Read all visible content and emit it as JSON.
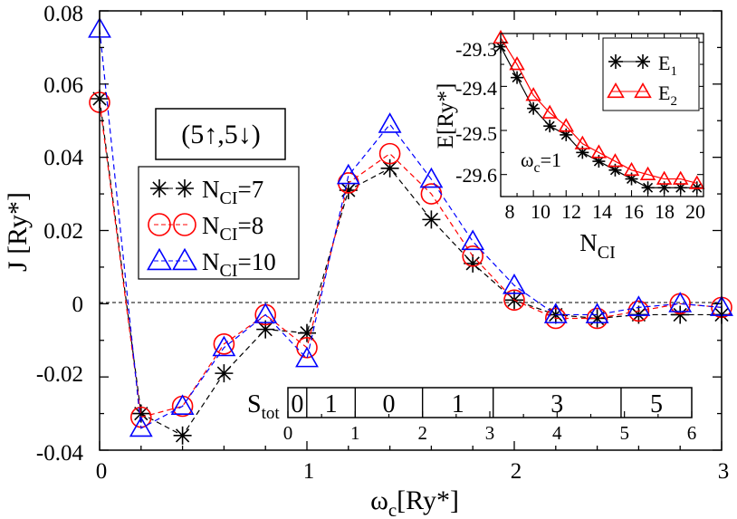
{
  "chart_data": [
    {
      "type": "line",
      "xlabel": "ωc[Ry*]",
      "ylabel": "J [Ry*]",
      "xlim": [
        0,
        3
      ],
      "ylim": [
        -0.04,
        0.08
      ],
      "x_ticks": [
        "0",
        "1",
        "2",
        "3"
      ],
      "y_ticks": [
        "-0.04",
        "-0.02",
        "0",
        "0.02",
        "0.04",
        "0.06",
        "0.08"
      ],
      "state_label": "(5↑,5↓)",
      "legend": [
        "NCI=7",
        "NCI=8",
        "NCI=10"
      ],
      "x": [
        0.0,
        0.2,
        0.4,
        0.6,
        0.8,
        1.0,
        1.2,
        1.4,
        1.6,
        1.8,
        2.0,
        2.2,
        2.4,
        2.6,
        2.8,
        3.0
      ],
      "series": [
        {
          "name": "NCI=7",
          "color": "#000000",
          "marker": "star",
          "values": [
            0.056,
            -0.03,
            -0.036,
            -0.019,
            -0.007,
            -0.008,
            0.031,
            0.037,
            0.023,
            0.011,
            0.001,
            -0.003,
            -0.004,
            -0.003,
            -0.003,
            -0.003
          ]
        },
        {
          "name": "NCI=8",
          "color": "#ff0000",
          "marker": "circle",
          "values": [
            0.055,
            -0.031,
            -0.028,
            -0.011,
            -0.003,
            -0.012,
            0.033,
            0.041,
            0.03,
            0.013,
            0.001,
            -0.004,
            -0.004,
            -0.002,
            0.0,
            -0.001
          ]
        },
        {
          "name": "NCI=10",
          "color": "#0000ff",
          "marker": "triangle",
          "values": [
            0.075,
            -0.034,
            -0.028,
            -0.012,
            -0.003,
            -0.015,
            0.035,
            0.049,
            0.034,
            0.017,
            0.005,
            -0.003,
            -0.003,
            -0.001,
            0.0,
            -0.001
          ]
        }
      ],
      "stot_bar": {
        "label": "Stot",
        "axis_range": [
          0,
          6
        ],
        "axis_ticks": [
          "0",
          "1",
          "2",
          "3",
          "4",
          "5",
          "6"
        ],
        "segments": [
          {
            "from": 0.0,
            "to": 0.28,
            "value": "0"
          },
          {
            "from": 0.28,
            "to": 1.0,
            "value": "1"
          },
          {
            "from": 1.0,
            "to": 2.0,
            "value": "0"
          },
          {
            "from": 2.0,
            "to": 3.05,
            "value": "1"
          },
          {
            "from": 3.05,
            "to": 4.95,
            "value": "3"
          },
          {
            "from": 4.95,
            "to": 6.0,
            "value": "5"
          }
        ]
      }
    },
    {
      "type": "line",
      "xlabel": "NCI",
      "ylabel": "E[Ry*]",
      "xlim": [
        8,
        20.4
      ],
      "ylim": [
        -29.65,
        -29.28
      ],
      "x_ticks": [
        "8",
        "10",
        "12",
        "14",
        "16",
        "18",
        "20"
      ],
      "y_ticks": [
        "-29.3",
        "-29.4",
        "-29.5",
        "-29.6"
      ],
      "annotation": "ωc=1",
      "legend": [
        "E1",
        "E2"
      ],
      "x": [
        8,
        9,
        10,
        11,
        12,
        13,
        14,
        15,
        16,
        17,
        18,
        19,
        20
      ],
      "series": [
        {
          "name": "E1",
          "color": "#000000",
          "marker": "star",
          "values": [
            -29.31,
            -29.38,
            -29.45,
            -29.49,
            -29.51,
            -29.55,
            -29.57,
            -29.59,
            -29.61,
            -29.63,
            -29.63,
            -29.63,
            -29.63
          ]
        },
        {
          "name": "E2",
          "color": "#ff0000",
          "marker": "triangle",
          "values": [
            -29.29,
            -29.35,
            -29.42,
            -29.46,
            -29.49,
            -29.53,
            -29.55,
            -29.57,
            -29.59,
            -29.6,
            -29.61,
            -29.61,
            -29.62
          ]
        }
      ]
    }
  ]
}
